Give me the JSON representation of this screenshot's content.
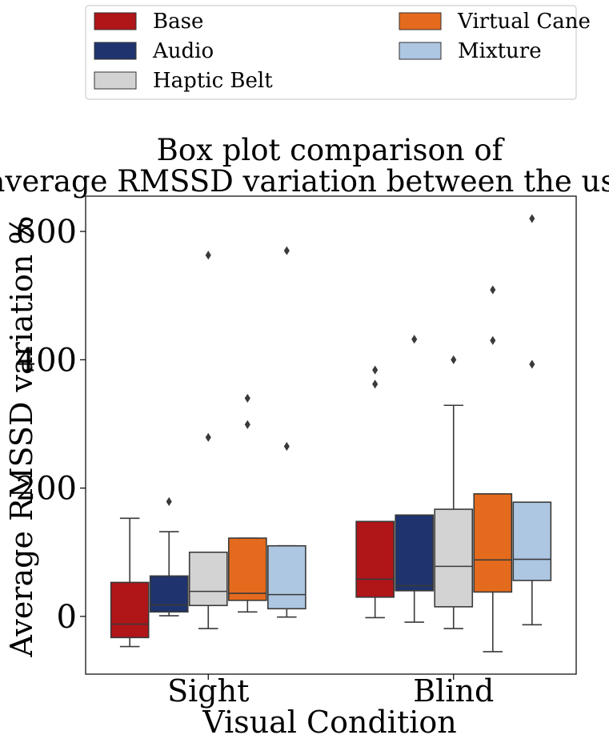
{
  "chart_data": {
    "type": "box",
    "title_lines": [
      "Box plot comparison of",
      "average RMSSD variation between the users."
    ],
    "xlabel": "Visual Condition",
    "ylabel": "Average RMSSD variation %",
    "ylim": [
      -90,
      655
    ],
    "yticks": [
      0,
      200,
      400,
      600
    ],
    "categories": [
      "Sight",
      "Blind"
    ],
    "legend": {
      "placement": "top",
      "columns": 2
    },
    "series": [
      {
        "name": "Base",
        "color": "#b01518",
        "boxes": [
          {
            "whislo": -47,
            "q1": -33,
            "med": -12,
            "q3": 53,
            "whishi": 153,
            "fliers": []
          },
          {
            "whislo": -2,
            "q1": 30,
            "med": 58,
            "q3": 148,
            "whishi": 148,
            "fliers": [
              362,
              384
            ]
          }
        ]
      },
      {
        "name": "Audio",
        "color": "#1f346e",
        "boxes": [
          {
            "whislo": 1,
            "q1": 7,
            "med": 18,
            "q3": 63,
            "whishi": 132,
            "fliers": [
              179
            ]
          },
          {
            "whislo": -9,
            "q1": 40,
            "med": 48,
            "q3": 158,
            "whishi": 158,
            "fliers": [
              432
            ]
          }
        ]
      },
      {
        "name": "Haptic Belt",
        "color": "#d3d3d3",
        "boxes": [
          {
            "whislo": -19,
            "q1": 17,
            "med": 39,
            "q3": 100,
            "whishi": 100,
            "fliers": [
              279,
              563
            ]
          },
          {
            "whislo": -19,
            "q1": 15,
            "med": 78,
            "q3": 167,
            "whishi": 329,
            "fliers": [
              400
            ]
          }
        ]
      },
      {
        "name": "Virtual Cane",
        "color": "#e46b1d",
        "boxes": [
          {
            "whislo": 7,
            "q1": 25,
            "med": 36,
            "q3": 122,
            "whishi": 122,
            "fliers": [
              299,
              340
            ]
          },
          {
            "whislo": -55,
            "q1": 38,
            "med": 88,
            "q3": 191,
            "whishi": 191,
            "fliers": [
              430,
              509
            ]
          }
        ]
      },
      {
        "name": "Mixture",
        "color": "#adc6e2",
        "boxes": [
          {
            "whislo": -1,
            "q1": 12,
            "med": 34,
            "q3": 110,
            "whishi": 110,
            "fliers": [
              265,
              570
            ]
          },
          {
            "whislo": -13,
            "q1": 56,
            "med": 89,
            "q3": 178,
            "whishi": 178,
            "fliers": [
              393,
              620
            ]
          }
        ]
      }
    ]
  }
}
